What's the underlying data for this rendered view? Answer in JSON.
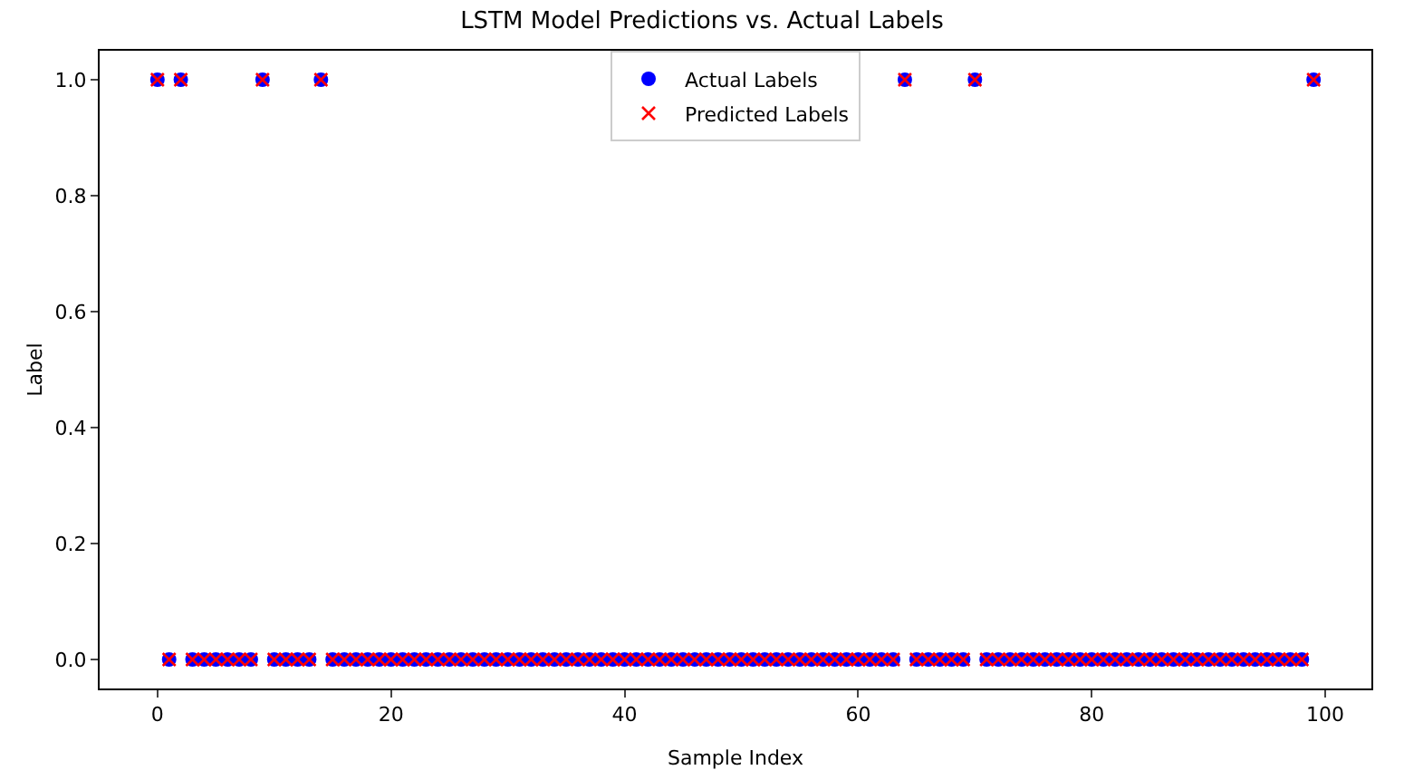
{
  "chart_data": {
    "type": "scatter",
    "title": "LSTM Model Predictions vs. Actual Labels",
    "xlabel": "Sample Index",
    "ylabel": "Label",
    "x": [
      0,
      1,
      2,
      3,
      4,
      5,
      6,
      7,
      8,
      9,
      10,
      11,
      12,
      13,
      14,
      15,
      16,
      17,
      18,
      19,
      20,
      21,
      22,
      23,
      24,
      25,
      26,
      27,
      28,
      29,
      30,
      31,
      32,
      33,
      34,
      35,
      36,
      37,
      38,
      39,
      40,
      41,
      42,
      43,
      44,
      45,
      46,
      47,
      48,
      49,
      50,
      51,
      52,
      53,
      54,
      55,
      56,
      57,
      58,
      59,
      60,
      61,
      62,
      63,
      64,
      65,
      66,
      67,
      68,
      69,
      70,
      71,
      72,
      73,
      74,
      75,
      76,
      77,
      78,
      79,
      80,
      81,
      82,
      83,
      84,
      85,
      86,
      87,
      88,
      89,
      90,
      91,
      92,
      93,
      94,
      95,
      96,
      97,
      98,
      99
    ],
    "series": [
      {
        "name": "Actual Labels",
        "color": "#0000ff",
        "marker": "circle",
        "values": [
          1,
          0,
          1,
          0,
          0,
          0,
          0,
          0,
          0,
          1,
          0,
          0,
          0,
          0,
          1,
          0,
          0,
          0,
          0,
          0,
          0,
          0,
          0,
          0,
          0,
          0,
          0,
          0,
          0,
          0,
          0,
          0,
          0,
          0,
          0,
          0,
          0,
          0,
          0,
          0,
          0,
          0,
          0,
          0,
          0,
          0,
          0,
          0,
          0,
          0,
          0,
          0,
          0,
          0,
          0,
          0,
          0,
          0,
          0,
          0,
          0,
          0,
          0,
          0,
          1,
          0,
          0,
          0,
          0,
          0,
          1,
          0,
          0,
          0,
          0,
          0,
          0,
          0,
          0,
          0,
          0,
          0,
          0,
          0,
          0,
          0,
          0,
          0,
          0,
          0,
          0,
          0,
          0,
          0,
          0,
          0,
          0,
          0,
          0,
          1
        ]
      },
      {
        "name": "Predicted Labels",
        "color": "#ff0000",
        "marker": "cross",
        "values": [
          1,
          0,
          1,
          0,
          0,
          0,
          0,
          0,
          0,
          1,
          0,
          0,
          0,
          0,
          1,
          0,
          0,
          0,
          0,
          0,
          0,
          0,
          0,
          0,
          0,
          0,
          0,
          0,
          0,
          0,
          0,
          0,
          0,
          0,
          0,
          0,
          0,
          0,
          0,
          0,
          0,
          0,
          0,
          0,
          0,
          0,
          0,
          0,
          0,
          0,
          0,
          0,
          0,
          0,
          0,
          0,
          0,
          0,
          0,
          0,
          0,
          0,
          0,
          0,
          1,
          0,
          0,
          0,
          0,
          0,
          1,
          0,
          0,
          0,
          0,
          0,
          0,
          0,
          0,
          0,
          0,
          0,
          0,
          0,
          0,
          0,
          0,
          0,
          0,
          0,
          0,
          0,
          0,
          0,
          0,
          0,
          0,
          0,
          0,
          1
        ]
      }
    ],
    "xlim": [
      -4.95,
      103.95
    ],
    "xticks": [
      0,
      20,
      40,
      60,
      80,
      100
    ],
    "ylim": [
      -0.05,
      1.05
    ],
    "yticks": [
      {
        "value": 0,
        "label": "0.0"
      },
      {
        "value": 0.2,
        "label": "0.2"
      },
      {
        "value": 0.4,
        "label": "0.4"
      },
      {
        "value": 0.6,
        "label": "0.6"
      },
      {
        "value": 0.8,
        "label": "0.8"
      },
      {
        "value": 1,
        "label": "1.0"
      }
    ],
    "grid": false,
    "legend": "top"
  }
}
